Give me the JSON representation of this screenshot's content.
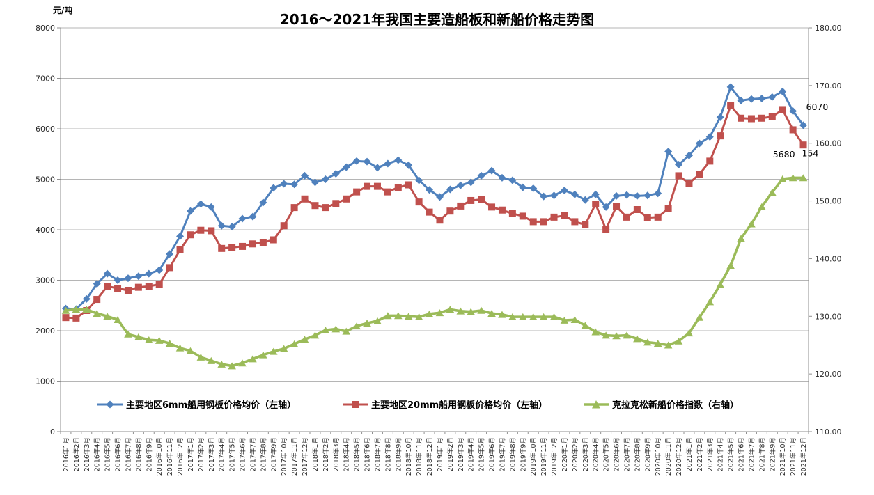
{
  "chart_data": {
    "type": "line",
    "title": "2016～2021年我国主要造船板和新船价格走势图",
    "grid": "horizontal",
    "legend_position": "bottom",
    "y_left": {
      "unit": "元/吨",
      "min": 0,
      "max": 8000,
      "tick_step": 1000,
      "tick_labels": [
        "0",
        "1000",
        "2000",
        "3000",
        "4000",
        "5000",
        "6000",
        "7000",
        "8000"
      ]
    },
    "y_right": {
      "min": 110,
      "max": 180,
      "tick_step": 10,
      "tick_labels": [
        "110.00",
        "120.00",
        "130.00",
        "140.00",
        "150.00",
        "160.00",
        "170.00",
        "180.00"
      ]
    },
    "x_labels": [
      "2016年1月",
      "2016年2月",
      "2016年3月",
      "2016年4月",
      "2016年5月",
      "2016年6月",
      "2016年7月",
      "2016年8月",
      "2016年9月",
      "2016年10月",
      "2016年11月",
      "2016年12月",
      "2017年1月",
      "2017年2月",
      "2017年3月",
      "2017年4月",
      "2017年5月",
      "2017年6月",
      "2017年7月",
      "2017年8月",
      "2017年9月",
      "2017年10月",
      "2017年11月",
      "2017年12月",
      "2018年1月",
      "2018年2月",
      "2018年3月",
      "2018年4月",
      "2018年5月",
      "2018年6月",
      "2018年7月",
      "2018年8月",
      "2018年9月",
      "2018年10月",
      "2018年11月",
      "2018年12月",
      "2019年1月",
      "2019年2月",
      "2019年3月",
      "2019年4月",
      "2019年5月",
      "2019年6月",
      "2019年7月",
      "2019年8月",
      "2019年9月",
      "2019年10月",
      "2019年11月",
      "2019年12月",
      "2020年1月",
      "2020年2月",
      "2020年3月",
      "2020年4月",
      "2020年5月",
      "2020年6月",
      "2020年7月",
      "2020年8月",
      "2020年9月",
      "2020年10月",
      "2020年11月",
      "2020年12月",
      "2021年1月",
      "2021年2月",
      "2021年3月",
      "2021年4月",
      "2021年5月",
      "2021年6月",
      "2021年7月",
      "2021年8月",
      "2021年9月",
      "2021年10月",
      "2021年11月",
      "2021年12月"
    ],
    "series": [
      {
        "label": "主要地区6mm船用钢板价格均价（左轴）",
        "color": "#4F81BD",
        "marker": "diamond",
        "axis": "left",
        "values": [
          2440,
          2430,
          2630,
          2930,
          3130,
          3000,
          3040,
          3080,
          3130,
          3200,
          3520,
          3870,
          4370,
          4510,
          4450,
          4080,
          4060,
          4220,
          4260,
          4540,
          4830,
          4910,
          4900,
          5070,
          4940,
          5000,
          5110,
          5240,
          5360,
          5350,
          5230,
          5310,
          5380,
          5280,
          4980,
          4790,
          4650,
          4800,
          4880,
          4940,
          5070,
          5170,
          5030,
          4980,
          4840,
          4820,
          4660,
          4680,
          4780,
          4700,
          4590,
          4700,
          4450,
          4670,
          4690,
          4670,
          4680,
          4720,
          5550,
          5290,
          5470,
          5710,
          5840,
          6230,
          6830,
          6560,
          6590,
          6600,
          6630,
          6740,
          6350,
          6070
        ]
      },
      {
        "label": "主要地区20mm船用钢板价格均价（左轴）",
        "color": "#C0504D",
        "marker": "square",
        "axis": "left",
        "values": [
          2260,
          2250,
          2400,
          2620,
          2880,
          2840,
          2800,
          2860,
          2880,
          2920,
          3250,
          3600,
          3900,
          3990,
          3980,
          3630,
          3650,
          3670,
          3720,
          3750,
          3800,
          4080,
          4440,
          4610,
          4480,
          4440,
          4520,
          4610,
          4750,
          4860,
          4860,
          4750,
          4840,
          4890,
          4550,
          4350,
          4190,
          4370,
          4470,
          4580,
          4600,
          4450,
          4390,
          4320,
          4270,
          4160,
          4160,
          4250,
          4280,
          4160,
          4100,
          4510,
          4010,
          4460,
          4250,
          4400,
          4240,
          4250,
          4420,
          5070,
          4920,
          5100,
          5360,
          5860,
          6460,
          6210,
          6200,
          6210,
          6240,
          6380,
          5980,
          5680
        ]
      },
      {
        "label": "克拉克松新船价格指数（右轴）",
        "color": "#9BBB59",
        "marker": "triangle",
        "axis": "right",
        "values": [
          131.0,
          131.2,
          131.2,
          130.5,
          130.0,
          129.4,
          126.9,
          126.4,
          125.9,
          125.8,
          125.3,
          124.5,
          124.0,
          122.9,
          122.3,
          121.7,
          121.4,
          121.9,
          122.6,
          123.3,
          123.9,
          124.4,
          125.2,
          126.0,
          126.7,
          127.6,
          127.8,
          127.4,
          128.3,
          128.8,
          129.2,
          130.1,
          130.1,
          130.0,
          129.9,
          130.4,
          130.6,
          131.2,
          130.9,
          130.8,
          131.0,
          130.5,
          130.3,
          129.9,
          129.9,
          129.9,
          129.9,
          129.9,
          129.3,
          129.4,
          128.4,
          127.3,
          126.7,
          126.6,
          126.7,
          126.1,
          125.5,
          125.3,
          125.0,
          125.7,
          127.1,
          129.8,
          132.5,
          135.5,
          138.8,
          143.5,
          146.0,
          149.0,
          151.5,
          153.8,
          154.0,
          154.0
        ]
      }
    ],
    "data_labels": [
      {
        "series_index": 0,
        "point_index": 71,
        "text": "6070"
      },
      {
        "series_index": 1,
        "point_index": 71,
        "text": "5680"
      },
      {
        "series_index": 2,
        "point_index": 71,
        "text": "154"
      }
    ]
  }
}
